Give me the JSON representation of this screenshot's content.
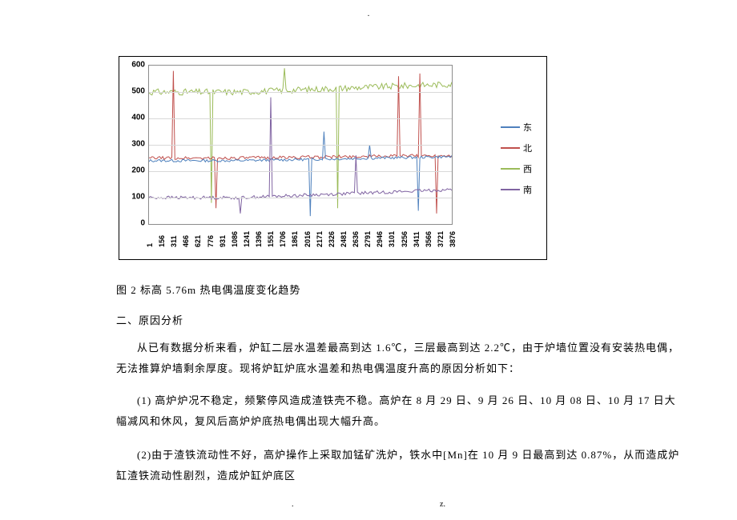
{
  "top_marker": ".",
  "chart": {
    "type": "line",
    "ylim": [
      0,
      600
    ],
    "ytick_step": 100,
    "yticks": [
      0,
      100,
      200,
      300,
      400,
      500,
      600
    ],
    "xticks": [
      1,
      156,
      311,
      466,
      621,
      776,
      931,
      1086,
      1241,
      1396,
      1551,
      1706,
      1861,
      2016,
      2171,
      2326,
      2481,
      2636,
      2791,
      2946,
      3101,
      3256,
      3411,
      3566,
      3721,
      3876
    ],
    "grid_color": "#d9d9d9",
    "border_color": "#8c8c8c",
    "background_color": "#ffffff",
    "legend": [
      {
        "label": "东",
        "color": "#4f81bd"
      },
      {
        "label": "北",
        "color": "#c0504d"
      },
      {
        "label": "西",
        "color": "#9bbb59"
      },
      {
        "label": "南",
        "color": "#8064a2"
      }
    ],
    "series": {
      "east": {
        "base": 240,
        "jitter": 5,
        "spikes_up": [
          300,
          350
        ],
        "spikes_down": [
          50,
          30
        ]
      },
      "north": {
        "base": 250,
        "jitter": 6,
        "spikes_up": [
          580,
          570,
          560
        ],
        "spikes_down": [
          60,
          40
        ]
      },
      "west": {
        "base": 500,
        "shift_to": 530,
        "jitter": 12,
        "spikes_up": [
          590
        ],
        "spikes_down": [
          60,
          80
        ]
      },
      "south": {
        "base": 100,
        "shift_to": 130,
        "jitter": 6,
        "spikes_up": [
          480,
          260
        ],
        "spikes_down": [
          40
        ]
      }
    }
  },
  "body": {
    "caption": "图 2 标高 5.76m 热电偶温度变化趋势",
    "heading2": "二、原因分析",
    "para1": "从已有数据分析来看，炉缸二层水温差最高到达 1.6℃，三层最高到达 2.2℃，由于炉墙位置没有安装热电偶，无法推算炉墙剩余厚度。现将炉缸炉底水温差和热电偶温度升高的原因分析如下：",
    "para2": "(1) 高炉炉况不稳定，频繁停风造成渣铁壳不稳。高炉在 8 月 29 日、9 月 26 日、10 月 08 日、10 月 17 日大幅减风和休风，复风后高炉炉底热电偶出现大幅升高。",
    "para3": "(2)由于渣铁流动性不好，高炉操作上采取加锰矿洗炉，铁水中[Mn]在 10 月 9 日最高到达 0.87%，从而造成炉缸渣铁流动性剧烈，造成炉缸炉底区"
  },
  "footer": {
    "left": ".",
    "right": "z."
  }
}
